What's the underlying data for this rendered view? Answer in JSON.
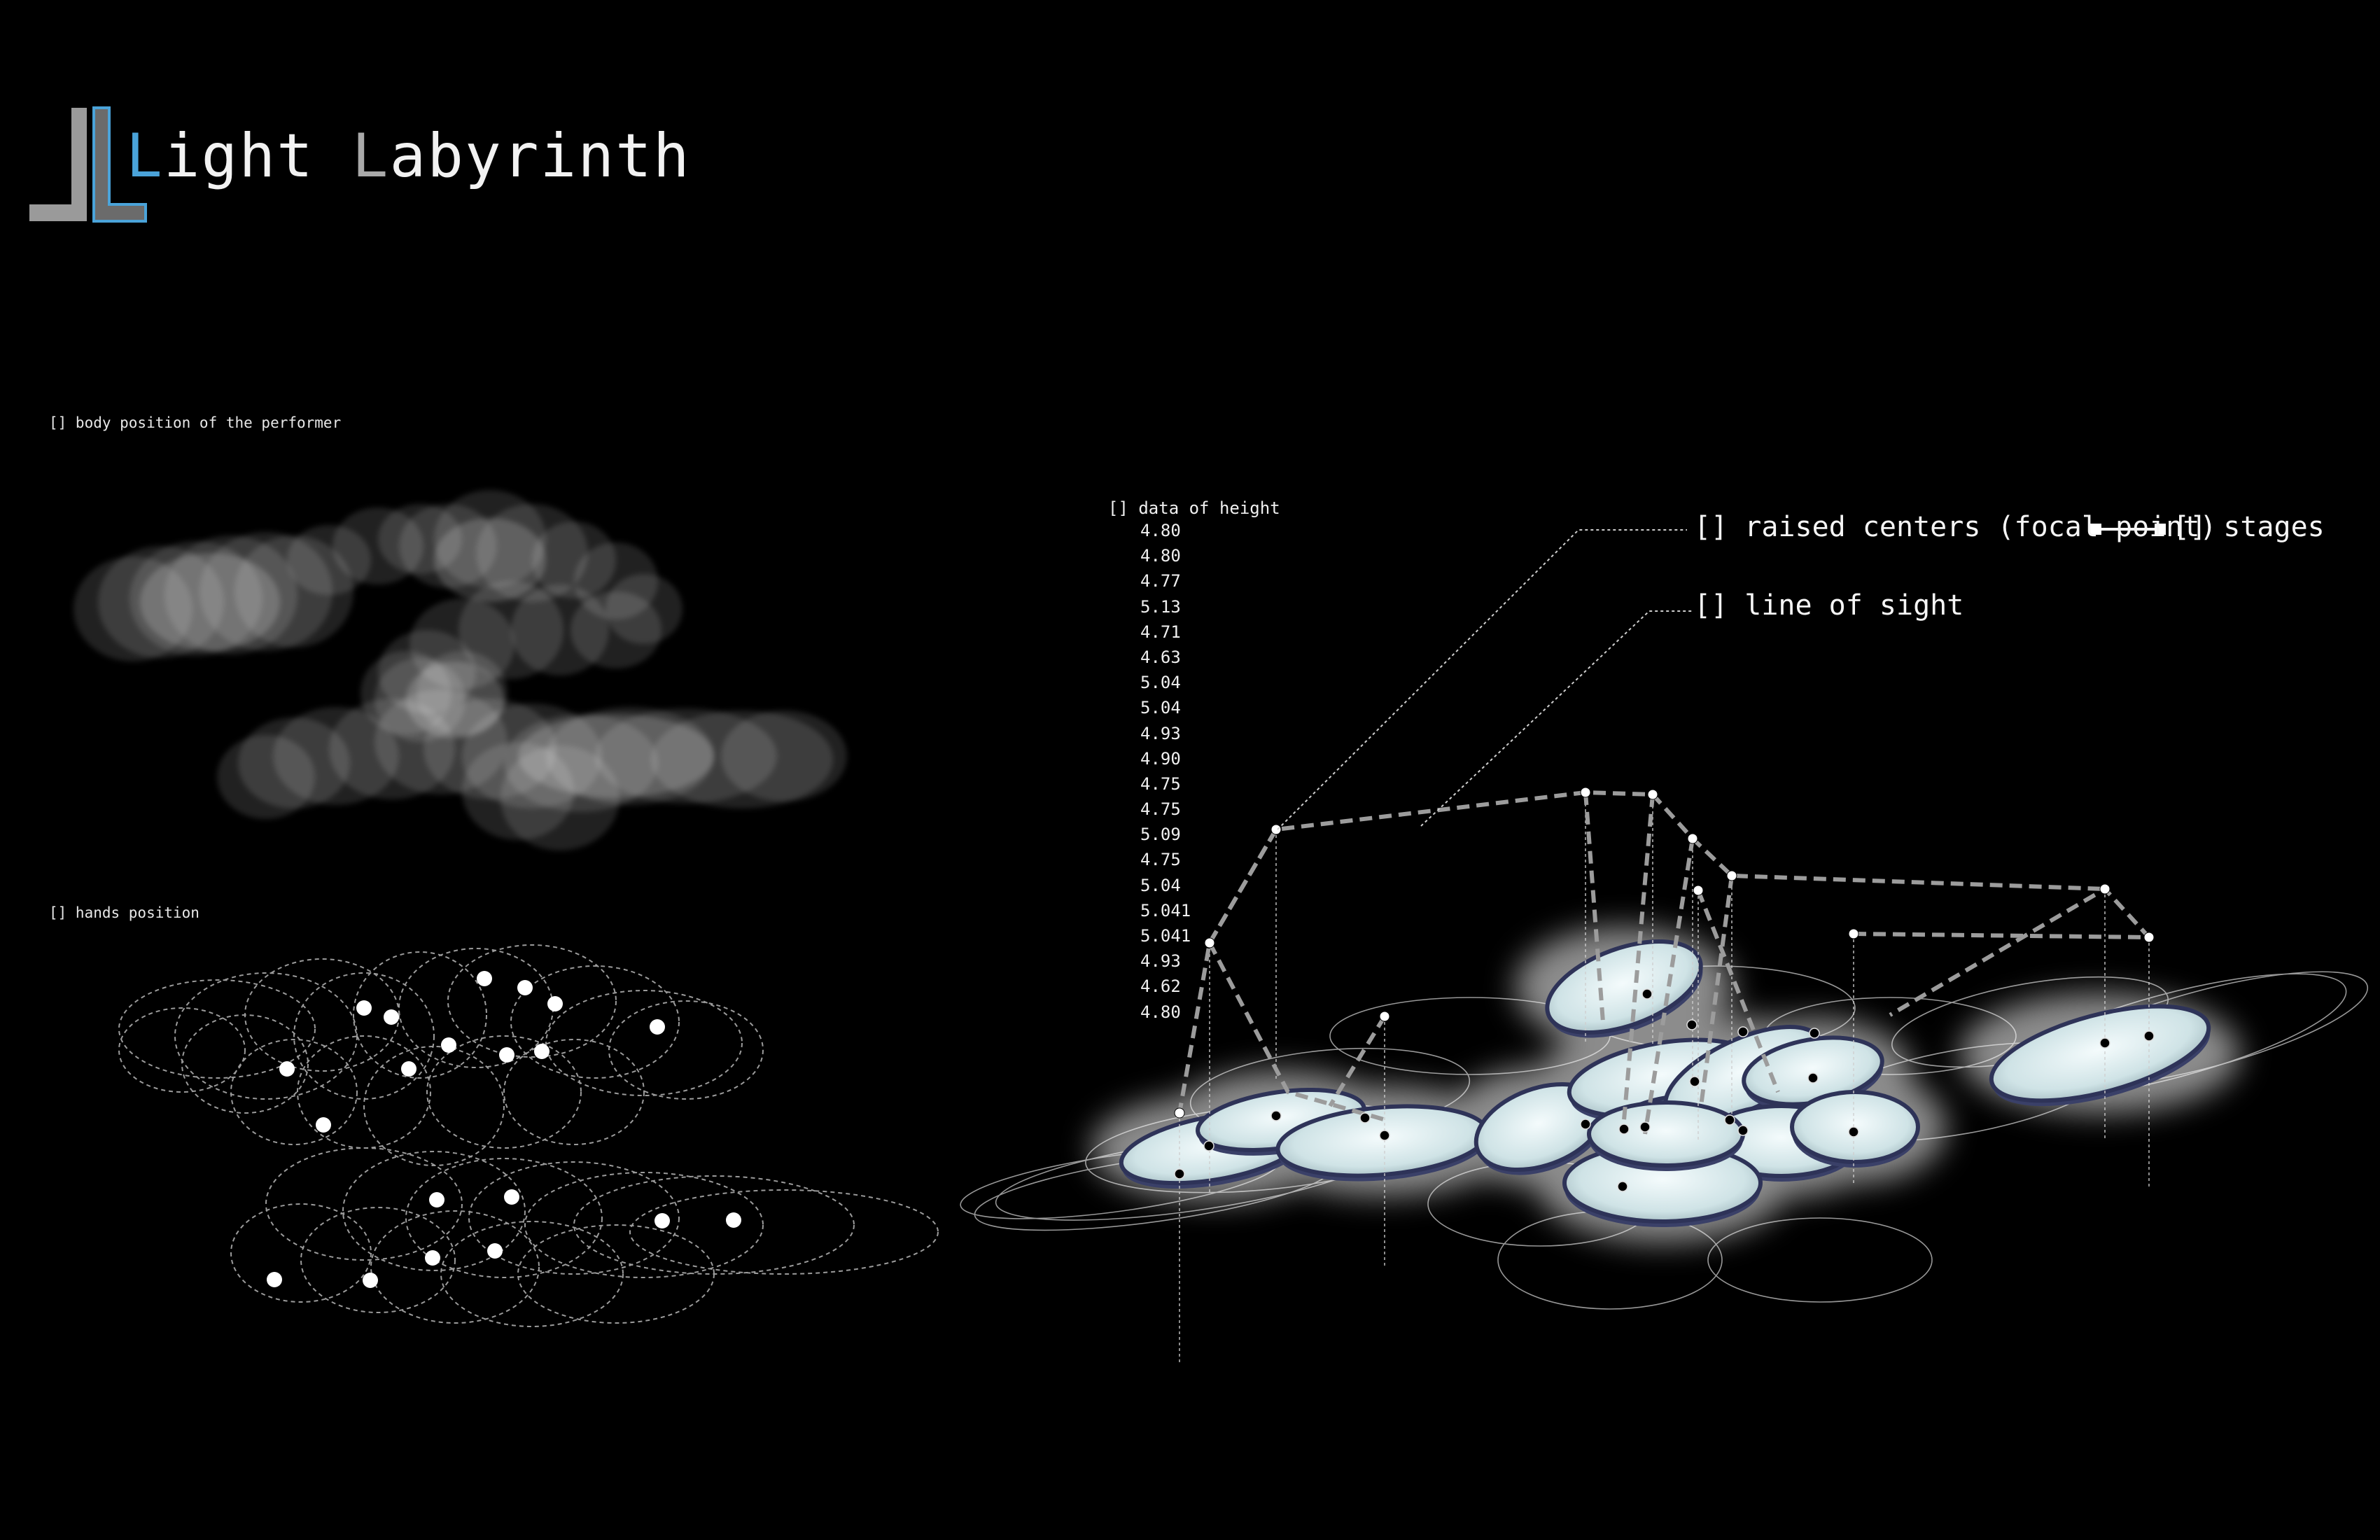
{
  "title": {
    "first_letter": "L",
    "rest_word1": "ight ",
    "second_letter": "L",
    "rest_word2": "abyrinth"
  },
  "labels": {
    "body_position": "[] body position of the performer",
    "hands_position": "[] hands position",
    "data_of_height": "[] data of height",
    "raised_centers": "[] raised centers (focal point)",
    "stages": "[] stages",
    "line_of_sight": "[] line of sight"
  },
  "height_data": [
    "4.80",
    "4.80",
    "4.77",
    "5.13",
    "4.71",
    "4.63",
    "5.04",
    "5.04",
    "4.93",
    "4.90",
    "4.75",
    "4.75",
    "5.09",
    "4.75",
    "5.04",
    "5.041",
    "5.041",
    "4.93",
    "4.62",
    "4.80"
  ],
  "colors": {
    "background": "#000000",
    "accent_blue": "#4aa3d9",
    "logo_gray": "#9a9a9a",
    "stage_fill": "#dfeef0",
    "stage_rim": "#2e3358"
  },
  "icons": {
    "logo": "double-L-logo-icon",
    "connector": "line-connector-icon"
  }
}
